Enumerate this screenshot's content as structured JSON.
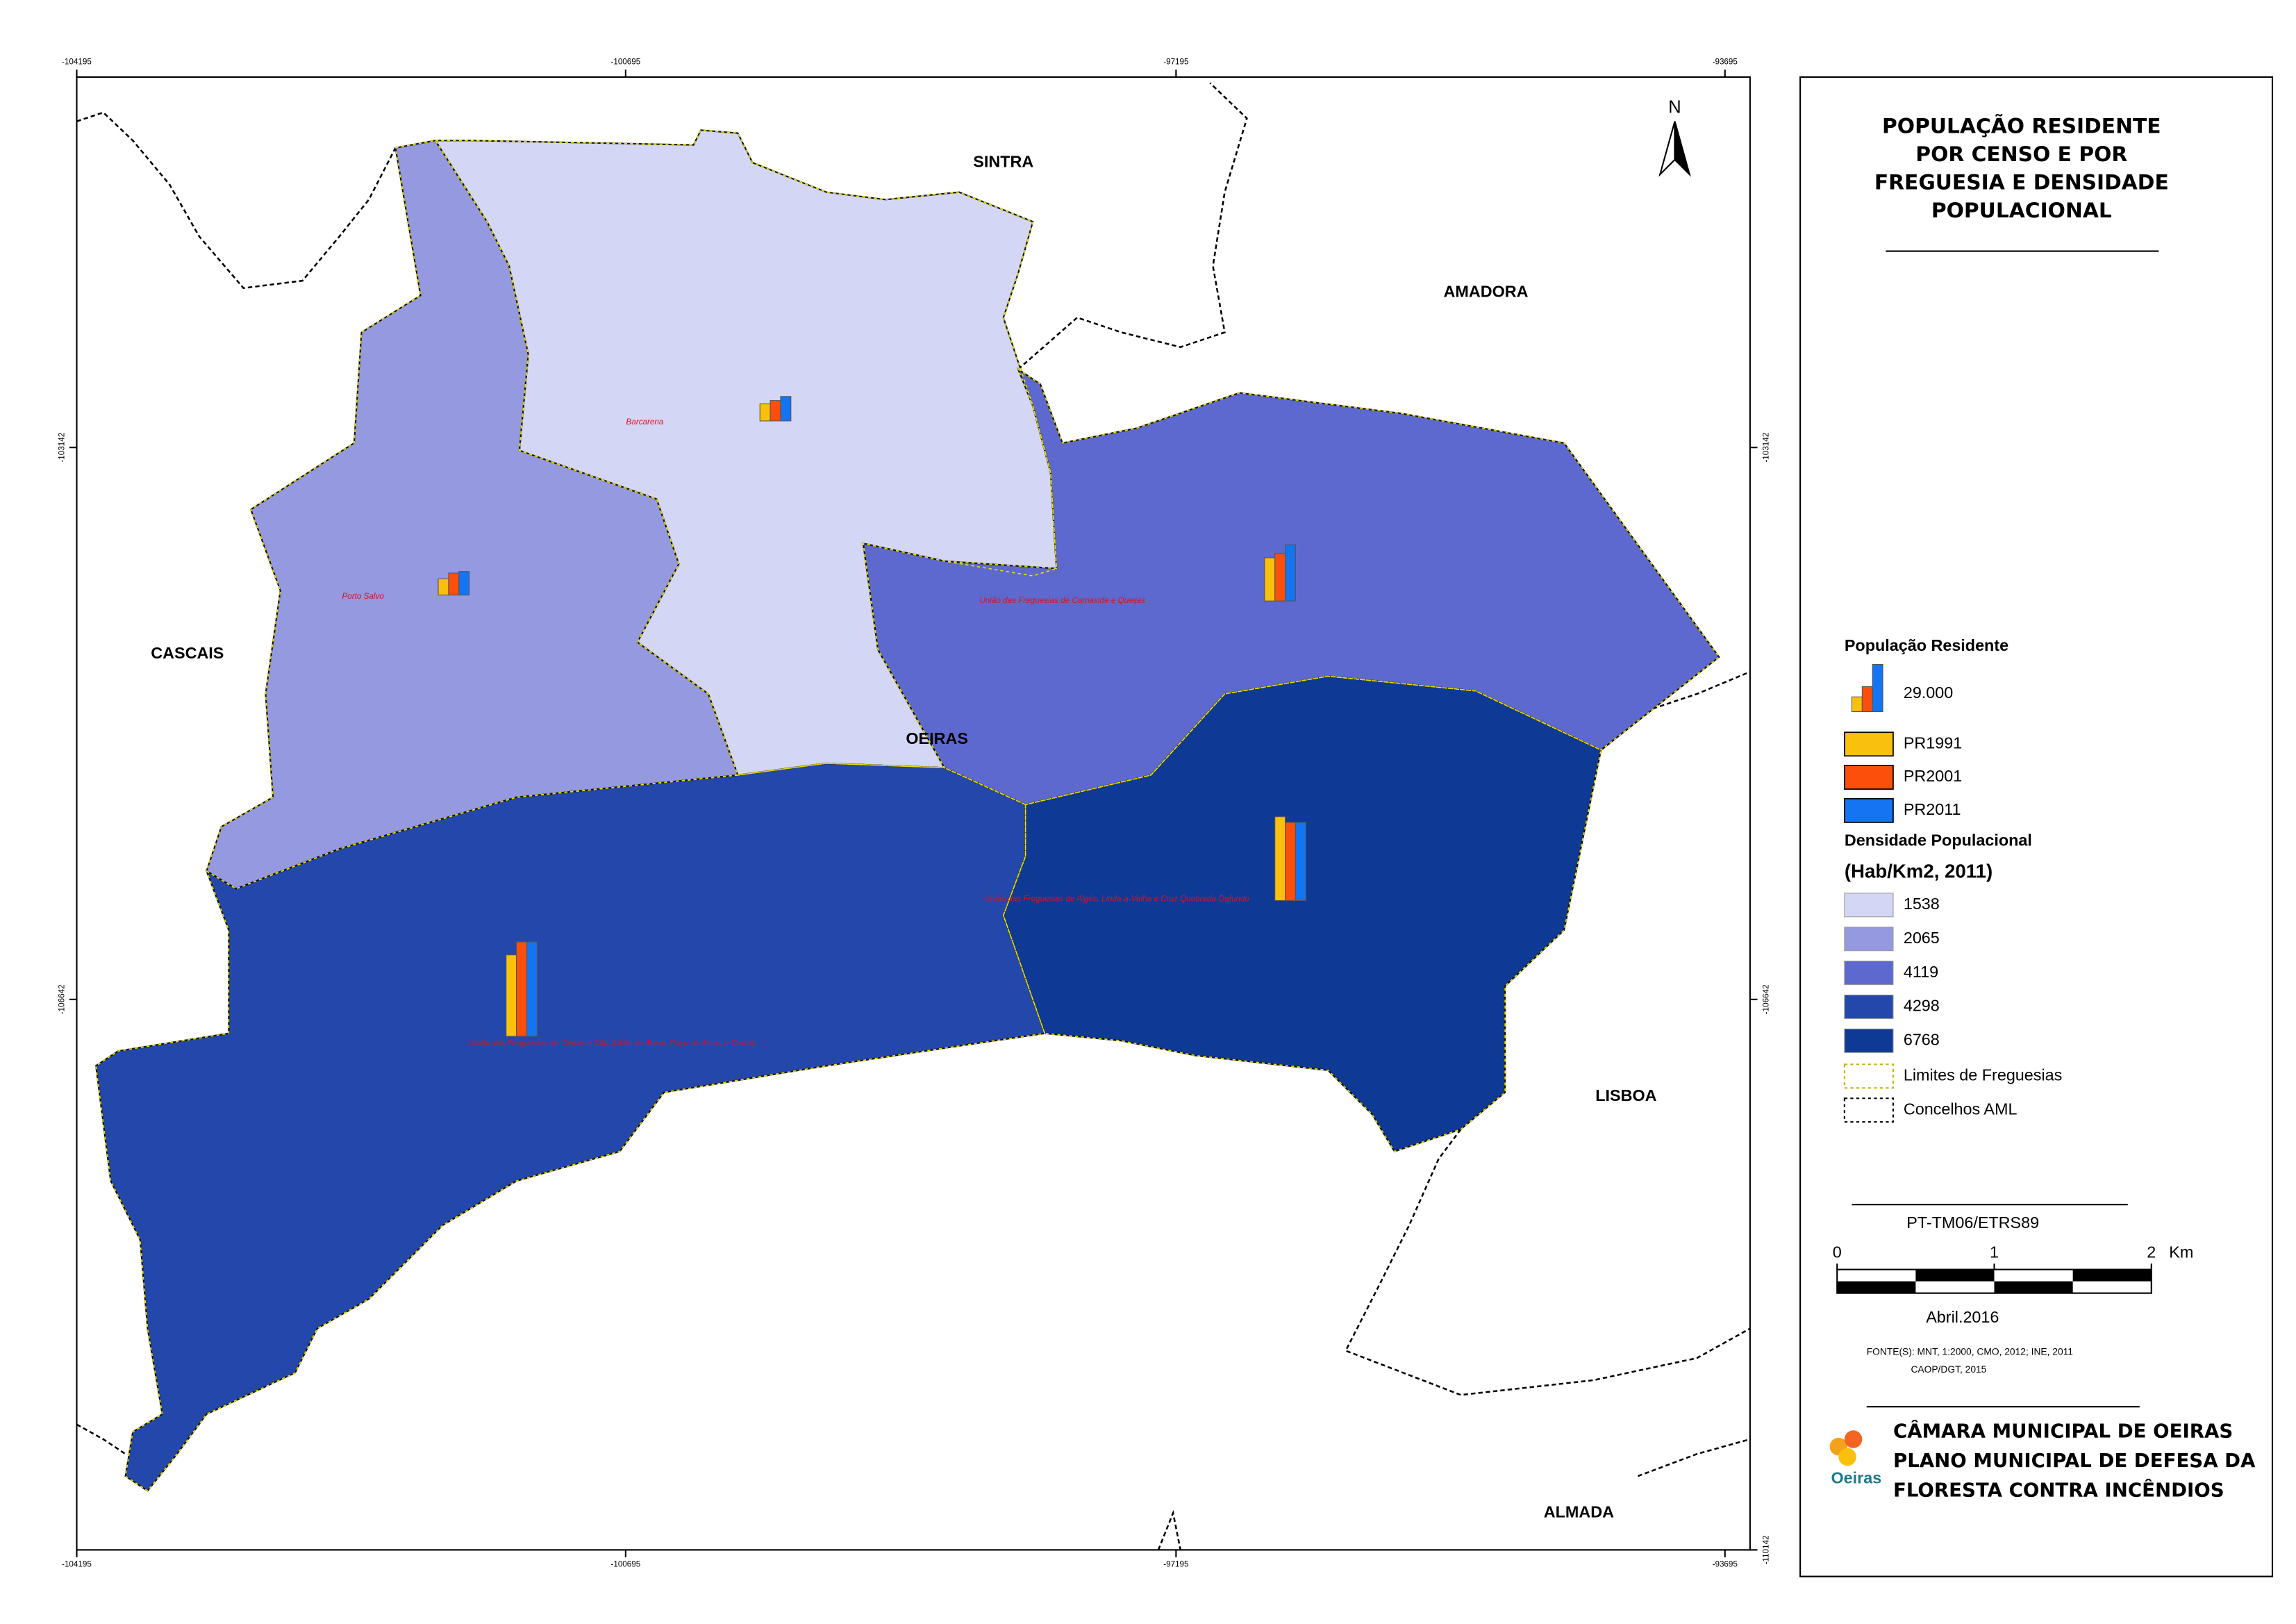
{
  "title_lines": [
    "POPULAÇÃO RESIDENTE",
    "POR CENSO E POR",
    "FREGUESIA E DENSIDADE",
    "POPULACIONAL"
  ],
  "north": "N",
  "grid": {
    "x": [
      "-104195",
      "-100695",
      "-97195",
      "-93695"
    ],
    "y_left": [
      "-103142",
      "-106642"
    ],
    "y_right": [
      "-103142",
      "-106642",
      "-110142"
    ]
  },
  "municipalities": [
    "SINTRA",
    "AMADORA",
    "CASCAIS",
    "OEIRAS",
    "LISBOA",
    "ALMADA"
  ],
  "parishes": [
    {
      "name": "Barcarena",
      "density": 1538,
      "population": [
        10500,
        12500,
        15000
      ]
    },
    {
      "name": "Porto Salvo",
      "density": 2065,
      "population": [
        10000,
        13500,
        14500
      ]
    },
    {
      "name": "União das Freguesias de Carnaxide e Queijas",
      "density": 4119,
      "population": [
        26500,
        29000,
        34500
      ]
    },
    {
      "name": "União das Freguesias de Algés, Linda-a-Velha e Cruz Quebrada-Dafundo",
      "density": 6768,
      "population": [
        51500,
        48000,
        48000
      ]
    },
    {
      "name": "União das Freguesias de Oeiras e São Julião da Barra, Paço de Arcos e Caxias",
      "density": 4298,
      "population": [
        50000,
        58000,
        58000
      ]
    }
  ],
  "legend": {
    "population_title": "População Residente",
    "reference": {
      "value": 29000,
      "label": "29.000"
    },
    "series": [
      {
        "name": "PR1991",
        "color": "#f9c00d"
      },
      {
        "name": "PR2001",
        "color": "#fb4f0b"
      },
      {
        "name": "PR2011",
        "color": "#1574f1"
      }
    ],
    "density_title": "Densidade Populacional",
    "density_unit": "(Hab/Km2, 2011)",
    "classes": [
      {
        "value": 1538,
        "color": "#d4d6f5"
      },
      {
        "value": 2065,
        "color": "#9599df"
      },
      {
        "value": 4119,
        "color": "#5d69cf"
      },
      {
        "value": 4298,
        "color": "#2447ab"
      },
      {
        "value": 6768,
        "color": "#0e3a96"
      }
    ],
    "boundaries": [
      "Limites de Freguesias",
      "Concelhos AML"
    ]
  },
  "scale": {
    "projection": "PT-TM06/ETRS89",
    "ticks": [
      0,
      1,
      2
    ],
    "unit": "Km",
    "date": "Abril.2016"
  },
  "sources": [
    "FONTE(S): MNT, 1:2000, CMO, 2012; INE, 2011",
    "CAOP/DGT, 2015"
  ],
  "logo": "Oeiras",
  "footer": [
    "CÂMARA MUNICIPAL DE OEIRAS",
    "PLANO MUNICIPAL DE DEFESA DA",
    "FLORESTA CONTRA INCÊNDIOS"
  ]
}
